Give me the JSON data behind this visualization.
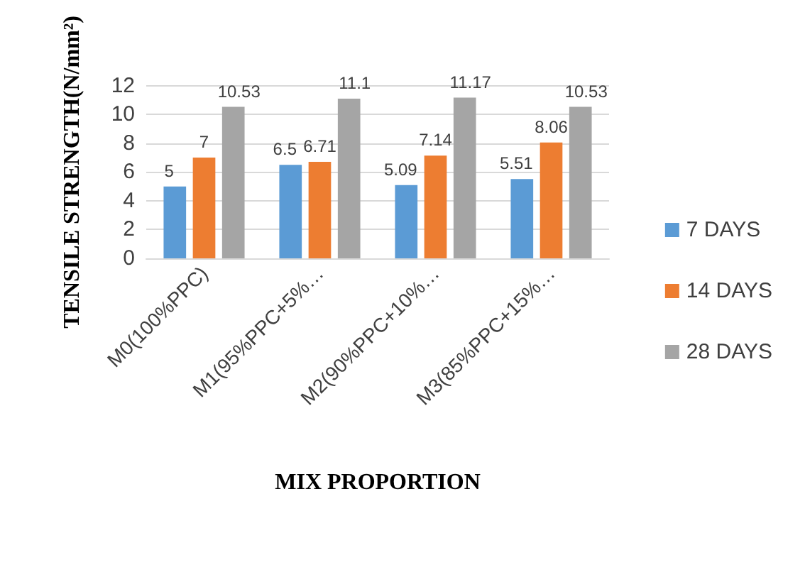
{
  "chart_data": {
    "type": "bar",
    "xlabel": "MIX PROPORTION",
    "ylabel": "TENSILE STRENGTH(N/mm²)",
    "categories": [
      "M0(100%PPC)",
      "M1(95%PPC+5%…",
      "M2(90%PPC+10%…",
      "M3(85%PPC+15%…"
    ],
    "series": [
      {
        "name": "7 DAYS",
        "color": "#5b9bd5",
        "values": [
          5,
          6.5,
          5.09,
          5.51
        ]
      },
      {
        "name": "14 DAYS",
        "color": "#ed7d31",
        "values": [
          7,
          6.71,
          7.14,
          8.06
        ]
      },
      {
        "name": "28 DAYS",
        "color": "#a5a5a5",
        "values": [
          10.53,
          11.1,
          11.17,
          10.53
        ]
      }
    ],
    "ylim": [
      0,
      12
    ],
    "yticks": [
      0,
      2,
      4,
      6,
      8,
      10,
      12
    ],
    "grid": "y",
    "legend": "right",
    "data_labels": true
  }
}
